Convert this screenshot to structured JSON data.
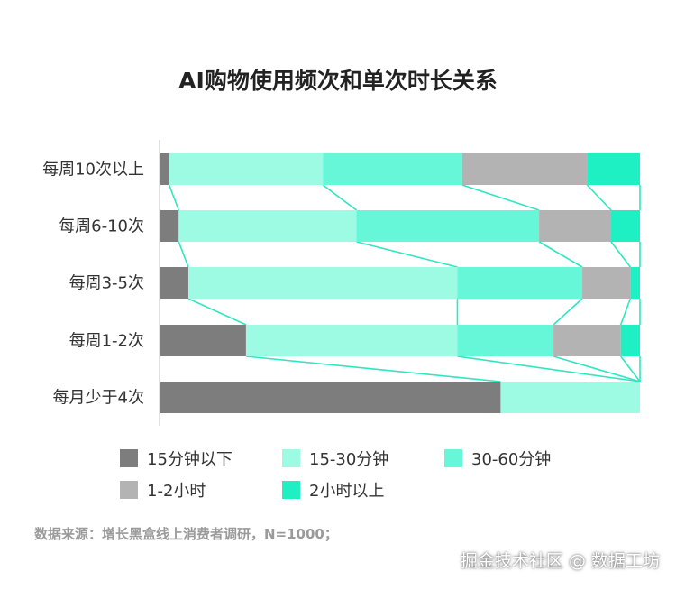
{
  "chart_data": {
    "type": "bar",
    "orientation": "horizontal",
    "stacked": true,
    "percent": true,
    "title": "AI购物使用频次和单次时长关系",
    "categories": [
      "每周10次以上",
      "每周6-10次",
      "每周3-5次",
      "每周1-2次",
      "每月少于4次"
    ],
    "series": [
      {
        "name": "15分钟以下",
        "color": "#7d7d7d",
        "values": [
          2,
          4,
          6,
          18,
          71
        ]
      },
      {
        "name": "15-30分钟",
        "color": "#9dfae3",
        "values": [
          32,
          37,
          56,
          44,
          29
        ]
      },
      {
        "name": "30-60分钟",
        "color": "#66f7d8",
        "values": [
          29,
          38,
          26,
          20,
          0
        ]
      },
      {
        "name": "1-2小时",
        "color": "#b3b3b3",
        "values": [
          26,
          15,
          10,
          14,
          0
        ]
      },
      {
        "name": "2小时以上",
        "color": "#1ff0c3",
        "values": [
          11,
          6,
          2,
          4,
          0
        ]
      }
    ],
    "xlim": [
      0,
      100
    ],
    "legend_position": "bottom",
    "connector_color": "#2fe6c0"
  },
  "source": "数据来源：增长黑盒线上消费者调研，N=1000；",
  "watermark": "掘金技术社区 @ 数据工坊"
}
